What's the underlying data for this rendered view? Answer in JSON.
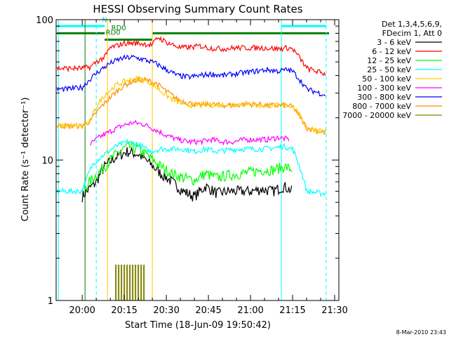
{
  "chart_data": {
    "type": "line",
    "title": "HESSI Observing Summary Count Rates",
    "xlabel": "Start Time (18-Jun-09 19:50:42)",
    "ylabel": "Count Rate (s⁻¹ detector⁻¹)",
    "y_scale": "log",
    "ylim": [
      1,
      100
    ],
    "xlim": [
      "19:50:42",
      "21:31:30"
    ],
    "x_ticks": [
      "20:00",
      "20:15",
      "20:30",
      "20:45",
      "21:00",
      "21:15",
      "21:30"
    ],
    "y_ticks": [
      "1",
      "10",
      "100"
    ],
    "grid": false,
    "legend_placement": "right",
    "legend_header": [
      "Det 1,3,4,5,6,9,",
      "FDecim 1, Att 0"
    ],
    "footer_date": "8-Mar-2010 23:43",
    "annotations": [
      {
        "text": "RD0",
        "x": "20:11",
        "y": 78,
        "color": "#008000"
      },
      {
        "text": "RD0",
        "x": "20:13",
        "y": 84,
        "color": "#008000"
      },
      {
        "text": "N",
        "x": "20:08",
        "y": 96,
        "color": "#00e5e5"
      }
    ],
    "series": [
      {
        "name": "3 - 6 keV",
        "color": "#000000",
        "x": [
          "20:00",
          "20:05",
          "20:08",
          "20:12",
          "20:16",
          "20:20",
          "20:24",
          "20:28",
          "20:32",
          "20:36",
          "20:40",
          "20:44",
          "20:48",
          "20:52",
          "20:56",
          "21:00",
          "21:04",
          "21:08",
          "21:12",
          "21:15"
        ],
        "values": [
          5.5,
          7,
          9,
          10.5,
          11.5,
          11,
          9.5,
          8,
          7,
          6,
          5.5,
          6.5,
          5.8,
          6,
          6,
          6,
          6.2,
          6,
          6.5,
          6
        ]
      },
      {
        "name": "6 - 12 keV",
        "color": "#ff0000",
        "x": [
          "19:51",
          "19:55",
          "20:00",
          "20:03",
          "20:05",
          "20:08",
          "20:10",
          "20:15",
          "20:20",
          "20:25",
          "20:27",
          "20:30",
          "20:35",
          "20:40",
          "20:42",
          "20:45",
          "20:50",
          "20:55",
          "21:00",
          "21:05",
          "21:10",
          "21:13",
          "21:15",
          "21:20",
          "21:25",
          "21:27"
        ],
        "values": [
          45,
          45,
          45,
          46,
          50,
          54,
          63,
          68,
          68,
          66,
          75,
          69,
          63,
          64,
          65,
          63,
          62,
          63,
          63,
          63,
          62,
          63,
          62,
          45,
          42,
          41
        ]
      },
      {
        "name": "12 - 25 keV",
        "color": "#00ff00",
        "x": [
          "20:00",
          "20:04",
          "20:08",
          "20:12",
          "20:16",
          "20:20",
          "20:24",
          "20:28",
          "20:32",
          "20:36",
          "20:40",
          "20:44",
          "20:48",
          "20:52",
          "20:56",
          "21:00",
          "21:04",
          "21:08",
          "21:12",
          "21:15"
        ],
        "values": [
          6,
          7.5,
          9,
          11,
          12.5,
          12,
          10.5,
          9,
          8,
          7.5,
          7.2,
          8,
          7.5,
          7.8,
          8,
          8.2,
          8.5,
          8.5,
          9,
          8.5
        ]
      },
      {
        "name": "25 - 50 keV",
        "color": "#00ffff",
        "x": [
          "19:51",
          "19:55",
          "20:00",
          "20:04",
          "20:08",
          "20:12",
          "20:16",
          "20:20",
          "20:24",
          "20:28",
          "20:32",
          "20:36",
          "20:40",
          "20:44",
          "20:48",
          "20:52",
          "20:56",
          "21:00",
          "21:04",
          "21:08",
          "21:12",
          "21:15",
          "21:20",
          "21:25",
          "21:27"
        ],
        "values": [
          6,
          6,
          6,
          9.5,
          11,
          12.5,
          13.5,
          13,
          11.5,
          12,
          12,
          12,
          11.5,
          12,
          11.5,
          11.8,
          12,
          12,
          12,
          12.2,
          12.5,
          12,
          6,
          5.8,
          5.8
        ]
      },
      {
        "name": "50 - 100 keV",
        "color": "#ffc800",
        "x": [
          "19:51",
          "19:55",
          "20:00",
          "20:03",
          "20:05",
          "20:08",
          "20:12",
          "20:16",
          "20:20",
          "20:24",
          "20:28",
          "20:32",
          "20:36",
          "20:40",
          "20:44",
          "20:48",
          "20:52",
          "20:56",
          "21:00",
          "21:04",
          "21:08",
          "21:12",
          "21:15",
          "21:20",
          "21:27"
        ],
        "values": [
          17.5,
          17.5,
          17.5,
          19,
          24,
          29,
          34,
          37,
          38,
          36,
          31,
          27,
          25,
          24.5,
          25,
          24.5,
          25,
          25,
          25,
          24.5,
          24.5,
          24.5,
          24.5,
          17,
          16
        ]
      },
      {
        "name": "100 - 300 keV",
        "color": "#ff00ff",
        "x": [
          "20:03",
          "20:06",
          "20:10",
          "20:14",
          "20:18",
          "20:22",
          "20:26",
          "20:30",
          "20:34",
          "20:38",
          "20:42",
          "20:46",
          "20:50",
          "20:54",
          "20:58",
          "21:02",
          "21:06",
          "21:10",
          "21:14"
        ],
        "values": [
          13,
          14.5,
          16,
          17.5,
          18.5,
          18,
          16.5,
          15,
          14,
          13.5,
          13.5,
          14,
          13.5,
          13.5,
          14,
          14,
          14,
          14.5,
          14
        ]
      },
      {
        "name": "300 - 800 keV",
        "color": "#0000ff",
        "x": [
          "19:51",
          "19:55",
          "20:00",
          "20:03",
          "20:06",
          "20:10",
          "20:14",
          "20:18",
          "20:22",
          "20:26",
          "20:30",
          "20:34",
          "20:38",
          "20:42",
          "20:46",
          "20:50",
          "20:54",
          "20:58",
          "21:02",
          "21:06",
          "21:10",
          "21:13",
          "21:15",
          "21:20",
          "21:27"
        ],
        "values": [
          32,
          32,
          33,
          38,
          43,
          49,
          53,
          54,
          52,
          49,
          44,
          40,
          39,
          40,
          41,
          40,
          41,
          42,
          43,
          44,
          43,
          44,
          43,
          32,
          29
        ]
      },
      {
        "name": "800 - 7000 keV",
        "color": "#ff8c00",
        "x": [
          "19:51",
          "19:55",
          "20:00",
          "20:03",
          "20:06",
          "20:10",
          "20:14",
          "20:18",
          "20:22",
          "20:26",
          "20:30",
          "20:34",
          "20:38",
          "20:42",
          "20:46",
          "20:50",
          "20:54",
          "20:58",
          "21:02",
          "21:06",
          "21:10",
          "21:13",
          "21:15",
          "21:20",
          "21:27"
        ],
        "values": [
          17.5,
          17.5,
          17.5,
          19,
          23,
          28,
          33,
          36.5,
          37.5,
          35.5,
          31,
          27,
          25.5,
          24.5,
          25,
          24.5,
          24.5,
          25,
          25,
          24.5,
          24.5,
          24.5,
          24,
          17,
          15.5
        ]
      },
      {
        "name": "7000 - 20000 keV",
        "color": "#808000",
        "x": [
          "20:12",
          "20:13",
          "20:14",
          "20:15",
          "20:16",
          "20:17",
          "20:18",
          "20:19",
          "20:20",
          "20:21",
          "20:22"
        ],
        "values": [
          1.8,
          1.8,
          1.8,
          1.8,
          1.8,
          1.8,
          1.8,
          1.8,
          1.8,
          1.8,
          1.8
        ]
      }
    ],
    "vertical_lines": [
      {
        "x": "19:51:30",
        "color": "#00ffff",
        "style": "solid"
      },
      {
        "x": "20:01",
        "color": "#008000",
        "style": "solid"
      },
      {
        "x": "20:05",
        "color": "#00ffff",
        "style": "dashed"
      },
      {
        "x": "20:09",
        "color": "#ffc800",
        "style": "solid"
      },
      {
        "x": "20:25",
        "color": "#ffc800",
        "style": "solid"
      },
      {
        "x": "21:11",
        "color": "#00ffff",
        "style": "solid"
      },
      {
        "x": "21:27",
        "color": "#00ffff",
        "style": "dashed"
      }
    ],
    "horizontal_bars": [
      {
        "x0": "19:51",
        "x1": "20:08",
        "y": 90,
        "color": "#00ffff"
      },
      {
        "x0": "21:11",
        "x1": "21:27",
        "y": 90,
        "color": "#00ffff"
      },
      {
        "x0": "19:51",
        "x1": "20:08",
        "y": 80,
        "color": "#008000"
      },
      {
        "x0": "20:08",
        "x1": "20:25",
        "y": 72,
        "color": "#008000"
      },
      {
        "x0": "20:25",
        "x1": "21:28",
        "y": 80,
        "color": "#008000"
      }
    ]
  }
}
